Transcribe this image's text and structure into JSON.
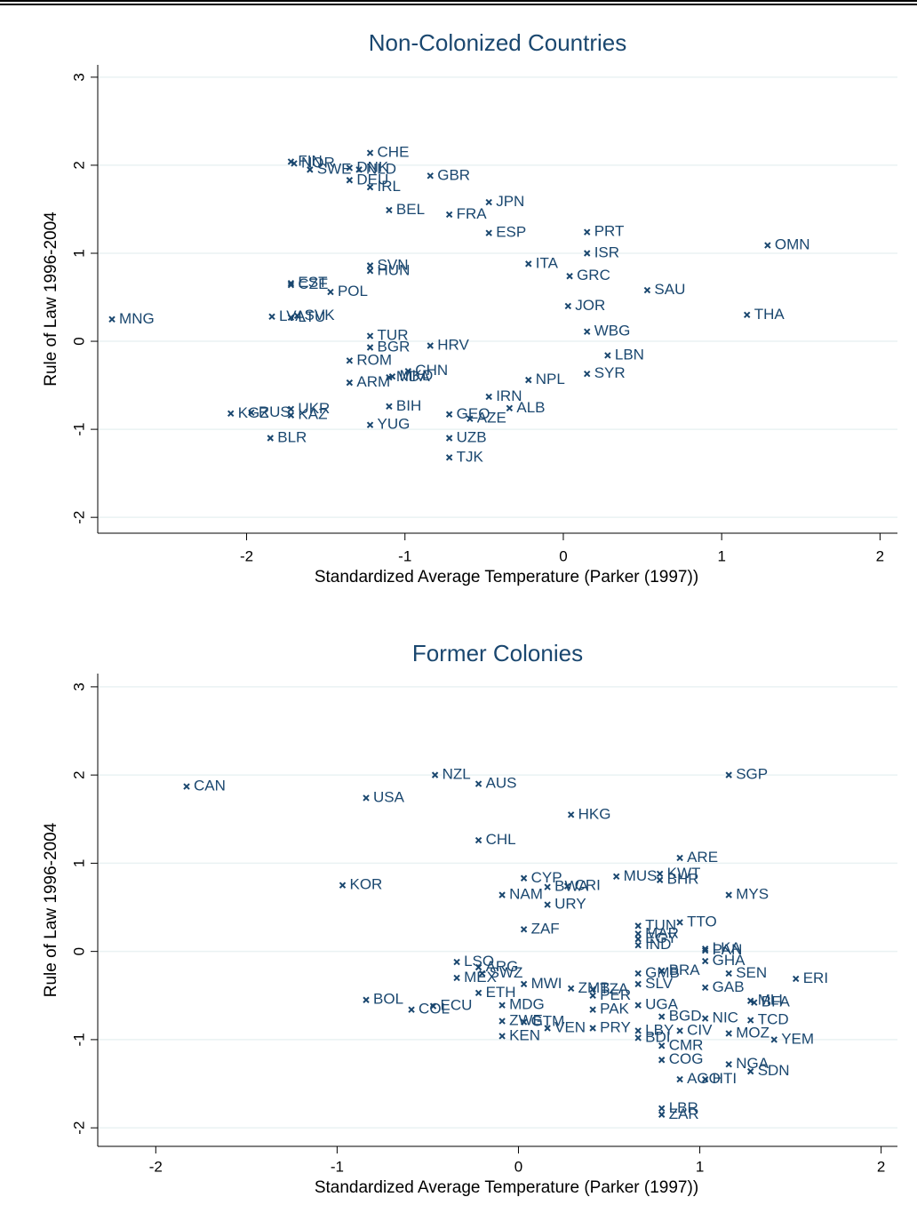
{
  "chart_data": [
    {
      "type": "scatter",
      "title": "Non-Colonized Countries",
      "x_label": "Standardized Average Temperature (Parker (1997))",
      "y_label": "Rule of Law 1996-2004",
      "xlim": [
        -2.94,
        2.11
      ],
      "ylim": [
        -2.18,
        3.14
      ],
      "xticks": [
        -2,
        -1,
        0,
        1,
        2
      ],
      "yticks": [
        -2,
        -1,
        0,
        1,
        2,
        3
      ],
      "grid": true,
      "color": "#1a476f",
      "labels": [
        "CHE",
        "FIN",
        "NOR",
        "SWE",
        "DNK",
        "NLD",
        "DEU",
        "IRL",
        "GBR",
        "JPN",
        "BEL",
        "FRA",
        "ESP",
        "PRT",
        "ISR",
        "OMN",
        "ITA",
        "GRC",
        "SAU",
        "SVN",
        "HUN",
        "EST",
        "CZE",
        "POL",
        "JOR",
        "THA",
        "MNG",
        "LVA",
        "LTU",
        "SVK",
        "WBG",
        "TUR",
        "BGR",
        "HRV",
        "LBN",
        "ROM",
        "CHN",
        "MDA",
        "MKD",
        "SYR",
        "ARM",
        "NPL",
        "IRN",
        "ALB",
        "BIH",
        "UKR",
        "KGZ",
        "RUS",
        "KAZ",
        "GEO",
        "AZE",
        "YUG",
        "BLR",
        "UZB",
        "TJK"
      ],
      "x": [
        -1.22,
        -1.72,
        -1.7,
        -1.6,
        -1.35,
        -1.29,
        -1.35,
        -1.22,
        -0.84,
        -0.47,
        -1.1,
        -0.72,
        -0.47,
        0.15,
        0.15,
        1.29,
        -0.22,
        0.04,
        0.53,
        -1.22,
        -1.22,
        -1.72,
        -1.72,
        -1.47,
        0.03,
        1.16,
        -2.85,
        -1.84,
        -1.72,
        -1.68,
        0.15,
        -1.22,
        -1.22,
        -0.84,
        0.28,
        -1.35,
        -0.98,
        -1.1,
        -1.08,
        0.15,
        -1.35,
        -0.22,
        -0.47,
        -0.34,
        -1.1,
        -1.72,
        -2.1,
        -1.97,
        -1.72,
        -0.72,
        -0.59,
        -1.22,
        -1.85,
        -0.72,
        -0.72
      ],
      "y": [
        2.14,
        2.04,
        2.02,
        1.95,
        1.97,
        1.95,
        1.83,
        1.75,
        1.88,
        1.58,
        1.49,
        1.44,
        1.23,
        1.24,
        1.0,
        1.09,
        0.88,
        0.74,
        0.58,
        0.86,
        0.8,
        0.66,
        0.64,
        0.56,
        0.4,
        0.3,
        0.25,
        0.28,
        0.27,
        0.29,
        0.11,
        0.06,
        -0.07,
        -0.05,
        -0.16,
        -0.22,
        -0.34,
        -0.41,
        -0.4,
        -0.37,
        -0.47,
        -0.44,
        -0.63,
        -0.76,
        -0.74,
        -0.77,
        -0.82,
        -0.81,
        -0.84,
        -0.83,
        -0.88,
        -0.95,
        -1.1,
        -1.1,
        -1.32
      ]
    },
    {
      "type": "scatter",
      "title": "Former Colonies",
      "x_label": "Standardized Average Temperature (Parker (1997))",
      "y_label": "Rule of Law 1996-2004",
      "xlim": [
        -2.32,
        2.09
      ],
      "ylim": [
        -2.21,
        3.15
      ],
      "xticks": [
        -2,
        -1,
        0,
        1,
        2
      ],
      "yticks": [
        -2,
        -1,
        0,
        1,
        2,
        3
      ],
      "grid": true,
      "color": "#1a476f",
      "labels": [
        "CAN",
        "NZL",
        "AUS",
        "SGP",
        "USA",
        "HKG",
        "CHL",
        "ARE",
        "KWT",
        "BHR",
        "MUS",
        "CYP",
        "BWA",
        "CRI",
        "MYS",
        "NAM",
        "URY",
        "KOR",
        "ZAF",
        "TTO",
        "TUN",
        "MAR",
        "EGY",
        "IND",
        "LKA",
        "PAN",
        "LSO",
        "GHA",
        "ARG",
        "BRA",
        "SEN",
        "ERI",
        "MEX",
        "SWZ",
        "GMB",
        "SLV",
        "MWI",
        "ZMB",
        "TZA",
        "PER",
        "ETH",
        "BOL",
        "MLI",
        "BFA",
        "GAB",
        "MDG",
        "ECU",
        "COL",
        "UGA",
        "PAK",
        "BGD",
        "NIC",
        "TCD",
        "ZWE",
        "GTM",
        "VEN",
        "PRY",
        "LBY",
        "CIV",
        "YEM",
        "MOZ",
        "BDI",
        "KEN",
        "CMR",
        "COG",
        "NGA",
        "SDN",
        "AGO",
        "HTI",
        "LBR",
        "ZAR"
      ],
      "x": [
        -1.83,
        -0.46,
        -0.22,
        1.16,
        -0.84,
        0.29,
        -0.22,
        0.89,
        0.78,
        0.78,
        0.54,
        0.03,
        0.16,
        0.27,
        1.16,
        -0.09,
        0.16,
        -0.97,
        0.03,
        0.89,
        0.66,
        0.66,
        0.66,
        0.66,
        1.03,
        1.03,
        -0.34,
        1.03,
        -0.22,
        0.79,
        1.16,
        1.53,
        -0.34,
        -0.2,
        0.66,
        0.66,
        0.03,
        0.29,
        0.41,
        0.41,
        -0.22,
        -0.84,
        1.28,
        1.3,
        1.03,
        -0.09,
        -0.47,
        -0.59,
        0.66,
        0.41,
        0.79,
        1.03,
        1.28,
        -0.09,
        0.03,
        0.16,
        0.41,
        0.66,
        0.89,
        1.41,
        1.16,
        0.66,
        -0.09,
        0.79,
        0.79,
        1.16,
        1.28,
        0.89,
        1.03,
        0.79,
        0.79
      ],
      "y": [
        1.87,
        2.0,
        1.9,
        2.0,
        1.74,
        1.55,
        1.26,
        1.06,
        0.88,
        0.81,
        0.85,
        0.83,
        0.73,
        0.74,
        0.64,
        0.64,
        0.53,
        0.75,
        0.25,
        0.33,
        0.29,
        0.2,
        0.14,
        0.07,
        0.03,
        0.01,
        -0.12,
        -0.11,
        -0.18,
        -0.22,
        -0.25,
        -0.31,
        -0.3,
        -0.25,
        -0.25,
        -0.37,
        -0.37,
        -0.42,
        -0.43,
        -0.5,
        -0.47,
        -0.55,
        -0.56,
        -0.58,
        -0.41,
        -0.61,
        -0.62,
        -0.66,
        -0.61,
        -0.66,
        -0.74,
        -0.76,
        -0.78,
        -0.79,
        -0.8,
        -0.87,
        -0.87,
        -0.9,
        -0.9,
        -1.0,
        -0.93,
        -0.98,
        -0.96,
        -1.07,
        -1.23,
        -1.28,
        -1.36,
        -1.45,
        -1.45,
        -1.78,
        -1.85
      ]
    }
  ]
}
